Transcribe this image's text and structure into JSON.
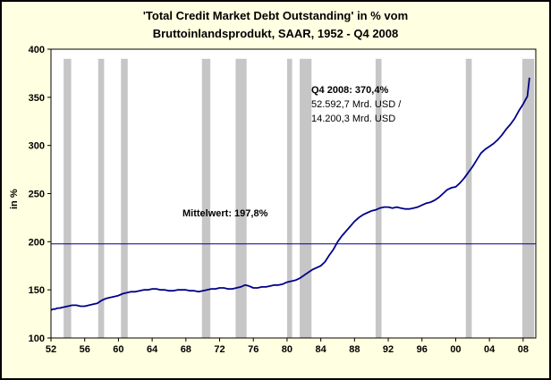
{
  "chart": {
    "title_line1": "'Total Credit Market Debt Outstanding' in % vom",
    "title_line2": "Bruttoinlandsprodukt, SAAR, 1952 - Q4 2008",
    "ylabel": "in %",
    "annotations": {
      "q4_line1": "Q4 2008: 370,4%",
      "q4_line2": "52.592,7 Mrd. USD /",
      "q4_line3": "14.200,3 Mrd. USD",
      "mean": "Mittelwert: 197,8%"
    }
  },
  "chart_data": {
    "type": "line",
    "title": "'Total Credit Market Debt Outstanding' in % vom Bruttoinlandsprodukt, SAAR, 1952 - Q4 2008",
    "xlabel": "",
    "ylabel": "in %",
    "x_range": [
      1952,
      2009.5
    ],
    "y_range": [
      100,
      400
    ],
    "x_ticks": [
      {
        "v": 1952,
        "label": "52"
      },
      {
        "v": 1956,
        "label": "56"
      },
      {
        "v": 1960,
        "label": "60"
      },
      {
        "v": 1964,
        "label": "64"
      },
      {
        "v": 1968,
        "label": "68"
      },
      {
        "v": 1972,
        "label": "72"
      },
      {
        "v": 1976,
        "label": "76"
      },
      {
        "v": 1980,
        "label": "80"
      },
      {
        "v": 1984,
        "label": "84"
      },
      {
        "v": 1988,
        "label": "88"
      },
      {
        "v": 1992,
        "label": "92"
      },
      {
        "v": 1996,
        "label": "96"
      },
      {
        "v": 2000,
        "label": "00"
      },
      {
        "v": 2004,
        "label": "04"
      },
      {
        "v": 2008,
        "label": "08"
      }
    ],
    "y_ticks": [
      100,
      150,
      200,
      250,
      300,
      350,
      400
    ],
    "mean_value": 197.8,
    "final_value": 370.4,
    "recession_band_top": 390,
    "recession_bands": [
      [
        1953.5,
        1954.4
      ],
      [
        1957.6,
        1958.3
      ],
      [
        1960.3,
        1961.1
      ],
      [
        1969.9,
        1970.9
      ],
      [
        1973.9,
        1975.2
      ],
      [
        1980.0,
        1980.6
      ],
      [
        1981.5,
        1982.9
      ],
      [
        1990.5,
        1991.2
      ],
      [
        2001.2,
        2001.9
      ],
      [
        2007.9,
        2009.3
      ]
    ],
    "colors": {
      "line": "#00008B",
      "mean_line": "#00008B",
      "band": "#C6C6C6",
      "background": "#FFFFE1",
      "plot_background": "#FFFFFF",
      "axis": "#000000"
    },
    "legend": "none",
    "grid": "off",
    "series": [
      {
        "name": "Total Credit Market Debt Outstanding in % of GDP",
        "color": "#00008B",
        "points": [
          [
            1952.0,
            129
          ],
          [
            1952.25,
            130
          ],
          [
            1952.5,
            130
          ],
          [
            1952.75,
            131
          ],
          [
            1953,
            131
          ],
          [
            1953.5,
            132
          ],
          [
            1954,
            133
          ],
          [
            1954.5,
            134
          ],
          [
            1955,
            134
          ],
          [
            1955.5,
            133
          ],
          [
            1956,
            133
          ],
          [
            1956.5,
            134
          ],
          [
            1957,
            135
          ],
          [
            1957.5,
            136
          ],
          [
            1958,
            139
          ],
          [
            1958.5,
            141
          ],
          [
            1959,
            142
          ],
          [
            1959.5,
            143
          ],
          [
            1960,
            144
          ],
          [
            1960.5,
            146
          ],
          [
            1961,
            147
          ],
          [
            1961.5,
            148
          ],
          [
            1962,
            148
          ],
          [
            1962.5,
            149
          ],
          [
            1963,
            150
          ],
          [
            1963.5,
            150
          ],
          [
            1964,
            151
          ],
          [
            1964.5,
            151
          ],
          [
            1965,
            150
          ],
          [
            1965.5,
            150
          ],
          [
            1966,
            149
          ],
          [
            1966.5,
            149
          ],
          [
            1967,
            150
          ],
          [
            1967.5,
            150
          ],
          [
            1968,
            150
          ],
          [
            1968.5,
            149
          ],
          [
            1969,
            149
          ],
          [
            1969.5,
            148
          ],
          [
            1970,
            149
          ],
          [
            1970.5,
            150
          ],
          [
            1971,
            151
          ],
          [
            1971.5,
            151
          ],
          [
            1972,
            152
          ],
          [
            1972.5,
            152
          ],
          [
            1973,
            151
          ],
          [
            1973.5,
            151
          ],
          [
            1974,
            152
          ],
          [
            1974.5,
            153
          ],
          [
            1975,
            155
          ],
          [
            1975.5,
            154
          ],
          [
            1976,
            152
          ],
          [
            1976.5,
            152
          ],
          [
            1977,
            153
          ],
          [
            1977.5,
            153
          ],
          [
            1978,
            154
          ],
          [
            1978.5,
            155
          ],
          [
            1979,
            155
          ],
          [
            1979.5,
            156
          ],
          [
            1980,
            158
          ],
          [
            1980.5,
            159
          ],
          [
            1981,
            160
          ],
          [
            1981.5,
            162
          ],
          [
            1982,
            165
          ],
          [
            1982.5,
            168
          ],
          [
            1983,
            171
          ],
          [
            1983.5,
            173
          ],
          [
            1984,
            175
          ],
          [
            1984.5,
            179
          ],
          [
            1985,
            186
          ],
          [
            1985.5,
            192
          ],
          [
            1986,
            200
          ],
          [
            1986.5,
            206
          ],
          [
            1987,
            211
          ],
          [
            1987.5,
            216
          ],
          [
            1988,
            221
          ],
          [
            1988.5,
            225
          ],
          [
            1989,
            228
          ],
          [
            1989.5,
            230
          ],
          [
            1990,
            232
          ],
          [
            1990.5,
            233
          ],
          [
            1991,
            235
          ],
          [
            1991.5,
            236
          ],
          [
            1992,
            236
          ],
          [
            1992.5,
            235
          ],
          [
            1993,
            236
          ],
          [
            1993.5,
            235
          ],
          [
            1994,
            234
          ],
          [
            1994.5,
            234
          ],
          [
            1995,
            235
          ],
          [
            1995.5,
            236
          ],
          [
            1996,
            238
          ],
          [
            1996.5,
            240
          ],
          [
            1997,
            241
          ],
          [
            1997.5,
            243
          ],
          [
            1998,
            246
          ],
          [
            1998.5,
            250
          ],
          [
            1999,
            254
          ],
          [
            1999.5,
            256
          ],
          [
            2000,
            257
          ],
          [
            2000.5,
            261
          ],
          [
            2001,
            266
          ],
          [
            2001.5,
            272
          ],
          [
            2002,
            278
          ],
          [
            2002.5,
            285
          ],
          [
            2003,
            292
          ],
          [
            2003.5,
            296
          ],
          [
            2004,
            299
          ],
          [
            2004.5,
            302
          ],
          [
            2005,
            306
          ],
          [
            2005.5,
            311
          ],
          [
            2006,
            317
          ],
          [
            2006.5,
            322
          ],
          [
            2007,
            328
          ],
          [
            2007.5,
            336
          ],
          [
            2008,
            343
          ],
          [
            2008.25,
            347
          ],
          [
            2008.5,
            351
          ],
          [
            2008.75,
            370.4
          ]
        ]
      }
    ]
  }
}
